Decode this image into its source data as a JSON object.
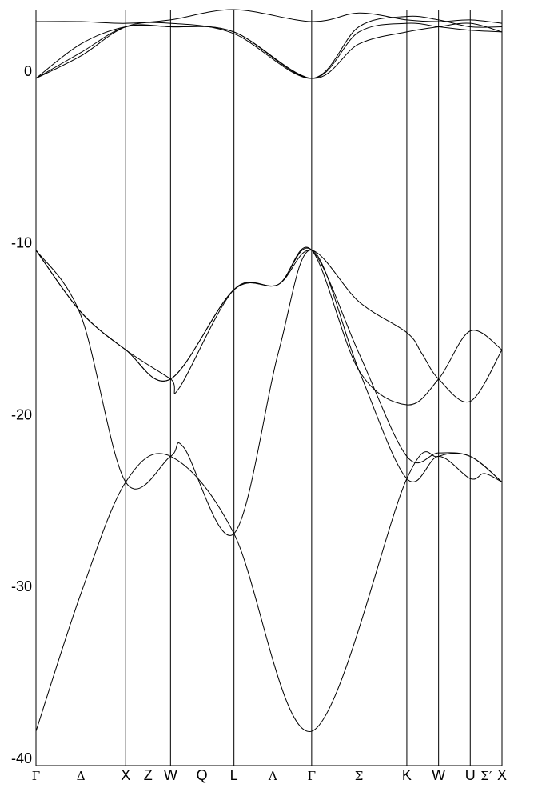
{
  "chart_data": {
    "type": "line",
    "title": "",
    "xlabel": "",
    "ylabel": "",
    "ylim": [
      -40,
      4
    ],
    "yticks": [
      0,
      -10,
      -20,
      -30,
      -40
    ],
    "grid": false,
    "line_color": "#000000",
    "k_points": [
      {
        "pos": 0.0,
        "label": "Γ",
        "style": "serif"
      },
      {
        "pos": 1.0,
        "label": "X",
        "style": "sans"
      },
      {
        "pos": 1.5,
        "label": "W",
        "style": "sans"
      },
      {
        "pos": 2.207,
        "label": "L",
        "style": "sans"
      },
      {
        "pos": 3.073,
        "label": "Γ",
        "style": "serif"
      },
      {
        "pos": 4.134,
        "label": "K",
        "style": "sans"
      },
      {
        "pos": 4.488,
        "label": "W",
        "style": "sans"
      },
      {
        "pos": 4.841,
        "label": "U",
        "style": "sans"
      },
      {
        "pos": 5.195,
        "label": "X",
        "style": "sans"
      }
    ],
    "segment_labels": [
      {
        "pos": 0.5,
        "label": "Δ",
        "style": "serif"
      },
      {
        "pos": 1.25,
        "label": "Z",
        "style": "sans"
      },
      {
        "pos": 1.85,
        "label": "Q",
        "style": "sans"
      },
      {
        "pos": 2.64,
        "label": "Λ",
        "style": "serif"
      },
      {
        "pos": 3.6,
        "label": "Σ",
        "style": "serif"
      },
      {
        "pos": 5.02,
        "label": "Σ′",
        "style": "serif"
      }
    ],
    "series": [
      {
        "x": [
          0,
          0.5,
          1.0,
          1.5,
          2.207,
          3.073,
          4.134,
          4.488,
          4.841,
          5.195
        ],
        "values": [
          -38.0,
          -30.0,
          -23.5,
          -22.0,
          -26.5,
          -38.0,
          -23.3,
          -22.0,
          -22.0,
          -23.5
        ]
      },
      {
        "x": [
          0,
          0.5,
          1.0,
          1.5,
          1.65,
          2.207,
          2.7,
          3.073,
          3.6,
          4.134,
          4.488,
          4.841,
          5.0,
          5.195
        ],
        "values": [
          -10.0,
          -13.8,
          -23.5,
          -22.0,
          -21.5,
          -26.5,
          -16.0,
          -10.0,
          -17.0,
          -23.3,
          -22.0,
          -23.3,
          -23.0,
          -23.5
        ]
      },
      {
        "x": [
          0,
          0.5,
          1.0,
          1.5,
          1.6,
          2.207,
          2.7,
          3.073,
          3.6,
          4.134,
          4.488,
          4.841,
          5.195
        ],
        "values": [
          -10.0,
          -13.6,
          -15.8,
          -17.5,
          -18.0,
          -12.3,
          -12.0,
          -10.0,
          -16.0,
          -22.0,
          -21.8,
          -22.0,
          -23.5
        ]
      },
      {
        "x": [
          0,
          0.5,
          1.0,
          1.5,
          2.207,
          2.7,
          3.073,
          3.6,
          4.134,
          4.3,
          4.488,
          4.841,
          5.195
        ],
        "values": [
          -10.0,
          -13.6,
          -15.8,
          -17.5,
          -12.3,
          -12.0,
          -10.0,
          -13.0,
          -14.8,
          -16.0,
          -17.5,
          -18.8,
          -15.8
        ]
      },
      {
        "x": [
          0,
          0.5,
          1.0,
          1.5,
          2.207,
          2.7,
          3.073,
          3.6,
          4.134,
          4.488,
          4.841,
          5.195
        ],
        "values": [
          -10.0,
          -13.6,
          -15.8,
          -17.5,
          -12.3,
          -12.0,
          -10.0,
          -17.0,
          -19.0,
          -17.5,
          -14.7,
          -15.8
        ]
      },
      {
        "x": [
          0,
          0.5,
          1.0,
          1.5,
          2.207,
          3.073,
          3.6,
          4.134,
          4.488,
          4.841,
          5.195
        ],
        "values": [
          0.0,
          1.5,
          3.0,
          3.0,
          2.7,
          0.0,
          2.0,
          2.7,
          3.0,
          3.2,
          2.7
        ]
      },
      {
        "x": [
          0,
          0.5,
          1.0,
          1.5,
          2.207,
          3.073,
          3.6,
          4.134,
          4.488,
          4.841,
          5.195
        ],
        "values": [
          0.0,
          2.0,
          3.0,
          3.0,
          2.7,
          0.0,
          2.7,
          3.2,
          3.0,
          2.8,
          2.7
        ]
      },
      {
        "x": [
          0,
          0.5,
          1.0,
          1.5,
          2.207,
          3.073,
          3.6,
          4.134,
          4.488,
          4.841,
          5.195
        ],
        "values": [
          3.3,
          3.3,
          3.2,
          3.4,
          4.0,
          3.3,
          3.8,
          3.4,
          3.3,
          3.4,
          3.2
        ]
      },
      {
        "x": [
          0,
          0.5,
          1.0,
          1.5,
          2.207,
          3.073,
          3.6,
          4.134,
          4.488,
          4.841,
          5.195
        ],
        "values": [
          0.0,
          1.3,
          3.0,
          3.2,
          2.6,
          0.0,
          3.0,
          3.6,
          3.4,
          3.0,
          3.0
        ]
      }
    ]
  }
}
